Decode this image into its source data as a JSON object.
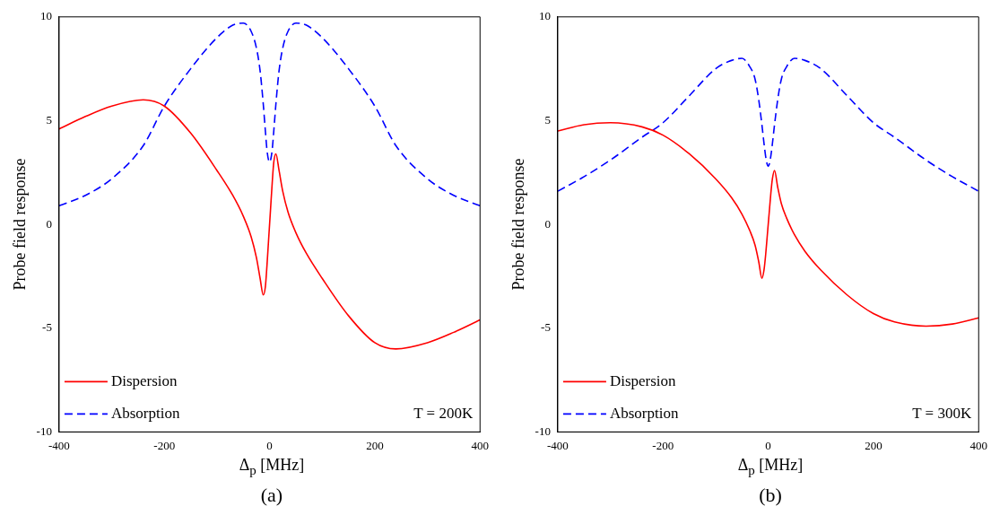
{
  "chart_data": [
    {
      "type": "line",
      "title": "(a)",
      "xlabel": "Δ$_{p}$ [MHz]",
      "ylabel": "Probe field response",
      "annotations": [
        "T = 200K"
      ],
      "x": [
        -400,
        -350,
        -300,
        -240,
        -200,
        -150,
        -100,
        -70,
        -50,
        -35,
        -25,
        -18,
        -12,
        -8,
        -5,
        -2,
        0,
        2,
        5,
        8,
        12,
        18,
        25,
        35,
        50,
        70,
        100,
        150,
        200,
        240,
        300,
        350,
        400
      ],
      "xlim": [
        -400,
        400
      ],
      "ylim": [
        -10,
        10
      ],
      "xticks": [
        -400,
        -200,
        0,
        200,
        400
      ],
      "yticks": [
        -10,
        -5,
        0,
        5,
        10
      ],
      "grid": false,
      "legend": "bottom left",
      "marker": "none",
      "series": [
        {
          "name": "Dispersion",
          "color": "#ff0000",
          "line_style": "solid",
          "values": [
            4.6,
            5.2,
            5.7,
            6.0,
            5.7,
            4.4,
            2.6,
            1.4,
            0.4,
            -0.6,
            -1.6,
            -2.6,
            -3.4,
            -3.0,
            -2.0,
            -0.8,
            0,
            0.8,
            2.0,
            3.0,
            3.4,
            2.6,
            1.6,
            0.6,
            -0.4,
            -1.4,
            -2.6,
            -4.4,
            -5.7,
            -6.0,
            -5.7,
            -5.2,
            -4.6
          ]
        },
        {
          "name": "Absorption",
          "color": "#0000ff",
          "line_style": "dashed",
          "values": [
            0.9,
            1.4,
            2.2,
            3.8,
            5.7,
            7.5,
            9.0,
            9.6,
            9.7,
            9.3,
            8.5,
            7.4,
            5.8,
            4.5,
            3.6,
            3.1,
            3.0,
            3.1,
            3.6,
            4.5,
            5.8,
            7.4,
            8.5,
            9.3,
            9.7,
            9.6,
            9.0,
            7.5,
            5.7,
            3.8,
            2.2,
            1.4,
            0.9
          ]
        }
      ]
    },
    {
      "type": "line",
      "title": "(b)",
      "xlabel": "Δ$_{p}$ [MHz]",
      "ylabel": "Probe field response",
      "annotations": [
        "T = 300K"
      ],
      "x": [
        -400,
        -350,
        -300,
        -240,
        -200,
        -150,
        -100,
        -70,
        -50,
        -35,
        -25,
        -18,
        -12,
        -8,
        -5,
        -2,
        0,
        2,
        5,
        8,
        12,
        18,
        25,
        35,
        50,
        70,
        100,
        150,
        200,
        240,
        300,
        350,
        400
      ],
      "xlim": [
        -400,
        400
      ],
      "ylim": [
        -10,
        10
      ],
      "xticks": [
        -400,
        -200,
        0,
        200,
        400
      ],
      "yticks": [
        -10,
        -5,
        0,
        5,
        10
      ],
      "grid": false,
      "legend": "bottom left",
      "marker": "none",
      "series": [
        {
          "name": "Dispersion",
          "color": "#ff0000",
          "line_style": "solid",
          "values": [
            4.5,
            4.8,
            4.9,
            4.7,
            4.3,
            3.4,
            2.2,
            1.3,
            0.5,
            -0.3,
            -1.0,
            -1.8,
            -2.6,
            -2.2,
            -1.5,
            -0.6,
            0,
            0.6,
            1.5,
            2.2,
            2.6,
            1.8,
            1.0,
            0.3,
            -0.5,
            -1.3,
            -2.2,
            -3.4,
            -4.3,
            -4.7,
            -4.9,
            -4.8,
            -4.5
          ]
        },
        {
          "name": "Absorption",
          "color": "#0000ff",
          "line_style": "dashed",
          "values": [
            1.6,
            2.3,
            3.1,
            4.2,
            4.9,
            6.2,
            7.5,
            7.9,
            8.0,
            7.6,
            7.0,
            6.0,
            4.8,
            3.9,
            3.3,
            2.9,
            2.8,
            2.9,
            3.3,
            3.9,
            4.8,
            6.0,
            7.0,
            7.6,
            8.0,
            7.9,
            7.5,
            6.2,
            4.9,
            4.2,
            3.1,
            2.3,
            1.6
          ]
        }
      ]
    }
  ]
}
